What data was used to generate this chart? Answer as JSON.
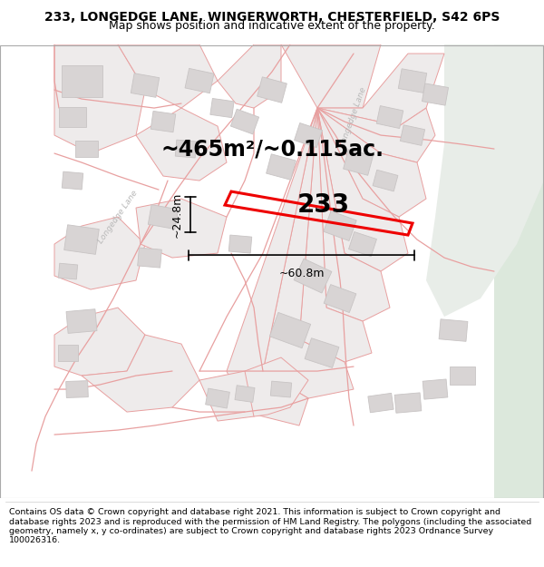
{
  "title_line1": "233, LONGEDGE LANE, WINGERWORTH, CHESTERFIELD, S42 6PS",
  "title_line2": "Map shows position and indicative extent of the property.",
  "footer_text": "Contains OS data © Crown copyright and database right 2021. This information is subject to Crown copyright and database rights 2023 and is reproduced with the permission of HM Land Registry. The polygons (including the associated geometry, namely x, y co-ordinates) are subject to Crown copyright and database rights 2023 Ordnance Survey 100026316.",
  "area_text": "~465m²/~0.115ac.",
  "plot_number": "233",
  "dim_width": "~60.8m",
  "dim_height": "~24.8m",
  "map_bg": "#f9f6f6",
  "road_color": "#e8a0a0",
  "plot_fill": "#eeebeb",
  "plot_edge": "#e8a0a0",
  "plot_line_color": "#ee0000",
  "building_color": "#d8d4d4",
  "building_edge": "#c8c4c4",
  "road_label_color": "#b8b8b8",
  "right_strip_color": "#dce8dc",
  "right_strip2_color": "#e8ede8",
  "title_fontsize": 10,
  "subtitle_fontsize": 9,
  "footer_fontsize": 6.8,
  "area_fontsize": 17,
  "plot_num_fontsize": 20,
  "dim_fontsize": 9
}
